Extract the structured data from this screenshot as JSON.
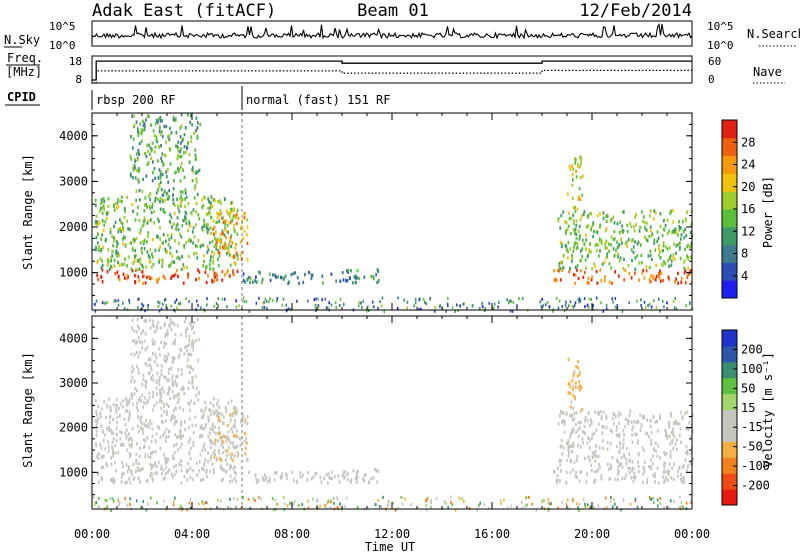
{
  "header": {
    "station": "Adak East (fitACF)",
    "beam": "Beam 01",
    "date": "12/Feb/2014"
  },
  "panel_labels": {
    "nsky": "N.Sky",
    "nsearch": "N.Search",
    "freq_line1": "Freq.",
    "freq_line2": "[MHz]",
    "nave": "Nave",
    "cpid": "CPID"
  },
  "cpid_segments": [
    {
      "label": "rbsp 200 RF",
      "start": "00:00",
      "end": "06:00"
    },
    {
      "label": "normal (fast) 151 RF",
      "start": "06:00",
      "end": "24:00"
    }
  ],
  "colors": {
    "background": "#ffffff",
    "axis": "#000000",
    "nodata": "#ffffff"
  },
  "chart_data": [
    {
      "type": "line",
      "name": "nsky-nsearch",
      "ylabel": "N.Sky",
      "y2label": "N.Search",
      "ytick_labels": [
        "10^5",
        "10^0"
      ],
      "y2tick_labels": [
        "10^5",
        "10^0"
      ],
      "xlim": [
        "00:00",
        "24:00"
      ]
    },
    {
      "type": "line",
      "name": "frequency-nave",
      "ylabel": "Freq. [MHz]",
      "y2label": "Nave",
      "yticks": [
        8,
        18
      ],
      "y2ticks": [
        0,
        60
      ],
      "series_freq": {
        "x": [
          "00:00",
          "00:10",
          "06:00",
          "10:00",
          "18:00",
          "24:00"
        ],
        "values": [
          8,
          17,
          17,
          16,
          17,
          17
        ]
      },
      "series_nave": {
        "x": [
          "00:00",
          "00:10",
          "06:00",
          "10:00",
          "18:00",
          "24:00"
        ],
        "values": [
          0,
          27,
          27,
          22,
          28,
          28
        ]
      }
    },
    {
      "type": "heatmap",
      "name": "power",
      "ylabel": "Slant Range [km]",
      "yticks": [
        1000,
        2000,
        3000,
        4000
      ],
      "ylim": [
        180,
        4500
      ],
      "xticks": [
        "00:00",
        "04:00",
        "08:00",
        "12:00",
        "16:00",
        "20:00",
        "00:00"
      ],
      "colorbar": {
        "label": "Power [dB]",
        "ticks": [
          4,
          8,
          12,
          16,
          20,
          24,
          28
        ],
        "range": [
          0,
          30
        ],
        "colors": [
          "#1e1ef0",
          "#2b4db8",
          "#3f7a8f",
          "#3e9a63",
          "#5bbf3a",
          "#9ccd2e",
          "#f1c20b",
          "#f59a0a",
          "#ef5f10",
          "#e02010"
        ]
      },
      "echo_regions": [
        {
          "t_start": 0.1,
          "t_end": 5.8,
          "range_low": 800,
          "range_high": 1100,
          "power": 27
        },
        {
          "t_start": 0.1,
          "t_end": 5.8,
          "range_low": 1100,
          "range_high": 2700,
          "power": 14
        },
        {
          "t_start": 1.5,
          "t_end": 4.3,
          "range_low": 2700,
          "range_high": 4500,
          "power": 12
        },
        {
          "t_start": 4.8,
          "t_end": 6.2,
          "range_low": 1300,
          "range_high": 2400,
          "power": 22
        },
        {
          "t_start": 6.0,
          "t_end": 10.6,
          "range_low": 800,
          "range_high": 1050,
          "power": 8
        },
        {
          "t_start": 10.0,
          "t_end": 11.5,
          "range_low": 800,
          "range_high": 1100,
          "power": 10
        },
        {
          "t_start": 18.4,
          "t_end": 24.0,
          "range_low": 800,
          "range_high": 1100,
          "power": 26
        },
        {
          "t_start": 18.6,
          "t_end": 24.0,
          "range_low": 1100,
          "range_high": 2400,
          "power": 14
        },
        {
          "t_start": 19.0,
          "t_end": 19.6,
          "range_low": 2400,
          "range_high": 3600,
          "power": 18
        }
      ]
    },
    {
      "type": "heatmap",
      "name": "velocity",
      "ylabel": "Slant Range [km]",
      "yticks": [
        1000,
        2000,
        3000,
        4000
      ],
      "ylim": [
        180,
        4500
      ],
      "xticks": [
        "00:00",
        "04:00",
        "08:00",
        "12:00",
        "16:00",
        "20:00",
        "00:00"
      ],
      "xlabel": "Time UT",
      "colorbar": {
        "label": "Velocity [m s⁻¹]",
        "tick_labels": [
          "200",
          "100",
          "50",
          "15",
          "-15",
          "-50",
          "-100",
          "-200"
        ],
        "range": [
          -250,
          250
        ],
        "colors": [
          "#e81a10",
          "#ef4b12",
          "#f3821e",
          "#f5b043",
          "#c6c6be",
          "#c6c6be",
          "#a2d66c",
          "#5ec040",
          "#3a8e72",
          "#2c56a8",
          "#1e34c8"
        ]
      },
      "echo_regions": [
        {
          "t_start": 0.1,
          "t_end": 5.8,
          "range_low": 800,
          "range_high": 1100,
          "velocity": 0
        },
        {
          "t_start": 0.1,
          "t_end": 5.8,
          "range_low": 1100,
          "range_high": 2700,
          "velocity": -5
        },
        {
          "t_start": 1.5,
          "t_end": 4.3,
          "range_low": 2700,
          "range_high": 4500,
          "velocity": -10
        },
        {
          "t_start": 4.8,
          "t_end": 6.2,
          "range_low": 1300,
          "range_high": 2400,
          "velocity": -60
        },
        {
          "t_start": 6.0,
          "t_end": 10.6,
          "range_low": 800,
          "range_high": 1050,
          "velocity": 0
        },
        {
          "t_start": 10.0,
          "t_end": 11.5,
          "range_low": 800,
          "range_high": 1100,
          "velocity": 0
        },
        {
          "t_start": 18.4,
          "t_end": 24.0,
          "range_low": 800,
          "range_high": 1100,
          "velocity": 0
        },
        {
          "t_start": 18.6,
          "t_end": 24.0,
          "range_low": 1100,
          "range_high": 2400,
          "velocity": -5
        },
        {
          "t_start": 19.0,
          "t_end": 19.6,
          "range_low": 2400,
          "range_high": 3600,
          "velocity": -80
        }
      ]
    }
  ]
}
